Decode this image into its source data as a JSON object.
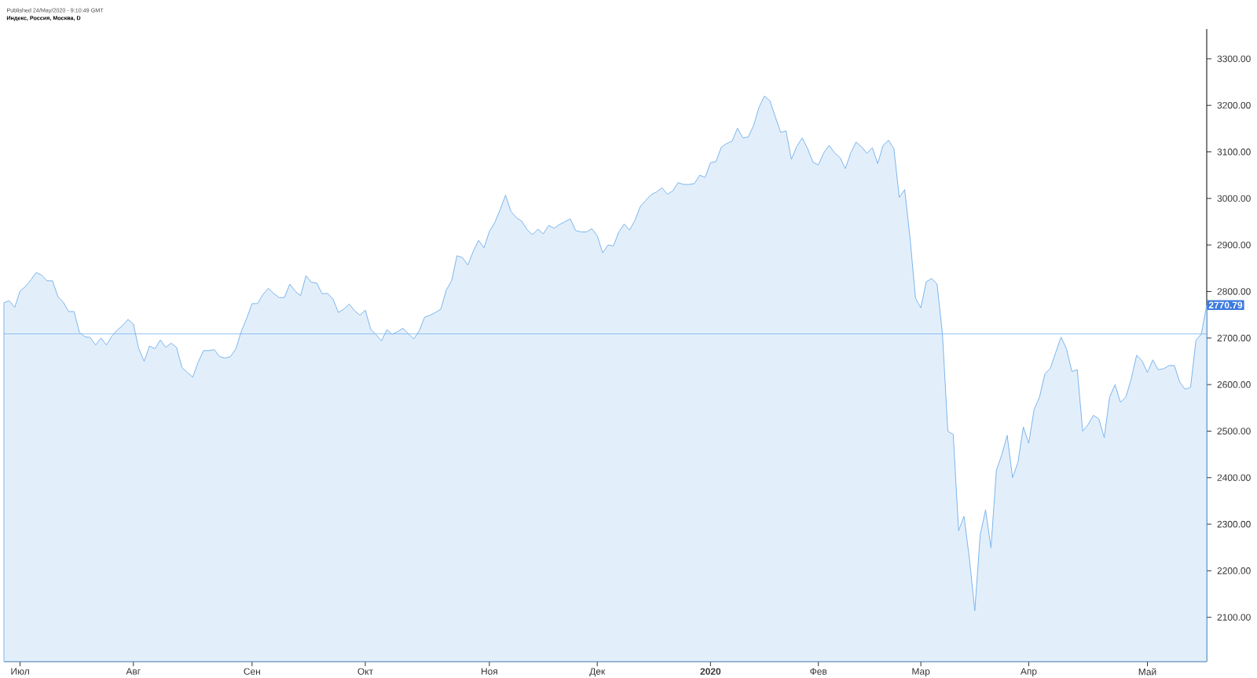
{
  "chart_data": {
    "type": "area",
    "title": "Индекс, Россия, Москва, D",
    "annotations": [
      "Published 24/May/2020 - 9:10:49 GMT",
      "2770.79"
    ],
    "categories": [
      null,
      null,
      null,
      "Июл",
      null,
      null,
      null,
      null,
      null,
      null,
      null,
      null,
      null,
      null,
      null,
      null,
      null,
      null,
      null,
      null,
      null,
      null,
      null,
      null,
      "Авг",
      null,
      null,
      null,
      null,
      null,
      null,
      null,
      null,
      null,
      null,
      null,
      null,
      null,
      null,
      null,
      null,
      null,
      null,
      null,
      null,
      null,
      "Сен",
      null,
      null,
      null,
      null,
      null,
      null,
      null,
      null,
      null,
      null,
      null,
      null,
      null,
      null,
      null,
      null,
      null,
      null,
      null,
      null,
      "Окт",
      null,
      null,
      null,
      null,
      null,
      null,
      null,
      null,
      null,
      null,
      null,
      null,
      null,
      null,
      null,
      null,
      null,
      null,
      null,
      null,
      null,
      null,
      "Ноя",
      null,
      null,
      null,
      null,
      null,
      null,
      null,
      null,
      null,
      null,
      null,
      null,
      null,
      null,
      null,
      null,
      null,
      null,
      null,
      "Дек",
      null,
      null,
      null,
      null,
      null,
      null,
      null,
      null,
      null,
      null,
      null,
      null,
      null,
      null,
      null,
      null,
      null,
      null,
      null,
      null,
      "**2020**",
      null,
      null,
      null,
      null,
      null,
      null,
      null,
      null,
      null,
      null,
      null,
      null,
      null,
      null,
      null,
      null,
      null,
      null,
      null,
      "Фев",
      null,
      null,
      null,
      null,
      null,
      null,
      null,
      null,
      null,
      null,
      null,
      null,
      null,
      null,
      null,
      null,
      null,
      null,
      "Мар",
      null,
      null,
      null,
      null,
      null,
      null,
      null,
      null,
      null,
      null,
      null,
      null,
      null,
      null,
      null,
      null,
      null,
      null,
      null,
      "Апр",
      null,
      null,
      null,
      null,
      null,
      null,
      null,
      null,
      null,
      null,
      null,
      null,
      null,
      null,
      null,
      null,
      null,
      null,
      null,
      null,
      null,
      "Май",
      null,
      null,
      null,
      null,
      null,
      null,
      null,
      null,
      null,
      null,
      null
    ],
    "ylim": [
      2005,
      3364
    ],
    "yticks": [
      {
        "value": 2100,
        "label": "2100.00"
      },
      {
        "value": 2200,
        "label": "2200.00"
      },
      {
        "value": 2300,
        "label": "2300.00"
      },
      {
        "value": 2400,
        "label": "2400.00"
      },
      {
        "value": 2500,
        "label": "2500.00"
      },
      {
        "value": 2600,
        "label": "2600.00"
      },
      {
        "value": 2700,
        "label": "2700.00"
      },
      {
        "value": 2800,
        "label": "2800.00"
      },
      {
        "value": 2900,
        "label": "2900.00"
      },
      {
        "value": 3000,
        "label": "3000.00"
      },
      {
        "value": 3100,
        "label": "3100.00"
      },
      {
        "value": 3200,
        "label": "3200.00"
      },
      {
        "value": 3300,
        "label": "3300.00"
      }
    ],
    "ref_lines": [
      {
        "axis": "y",
        "value": 2709,
        "color": "#7cb5ec"
      }
    ],
    "series": [
      {
        "color": "#7cb5ec",
        "values": [
          2776,
          2780,
          2766,
          2801,
          2811,
          2825,
          2841,
          2835,
          2823,
          2823,
          2789,
          2777,
          2757,
          2757,
          2712,
          2703,
          2701,
          2685,
          2700,
          2685,
          2704,
          2717,
          2727,
          2740,
          2730,
          2677,
          2650,
          2683,
          2677,
          2696,
          2680,
          2689,
          2680,
          2637,
          2626,
          2616,
          2648,
          2673,
          2673,
          2675,
          2660,
          2657,
          2660,
          2677,
          2714,
          2742,
          2774,
          2774,
          2793,
          2807,
          2796,
          2787,
          2787,
          2816,
          2801,
          2791,
          2834,
          2820,
          2818,
          2795,
          2796,
          2784,
          2755,
          2762,
          2773,
          2759,
          2749,
          2760,
          2719,
          2707,
          2694,
          2718,
          2708,
          2714,
          2721,
          2709,
          2698,
          2716,
          2745,
          2749,
          2755,
          2762,
          2803,
          2823,
          2877,
          2873,
          2857,
          2886,
          2910,
          2894,
          2929,
          2948,
          2976,
          3007,
          2972,
          2959,
          2951,
          2933,
          2922,
          2934,
          2924,
          2942,
          2936,
          2944,
          2950,
          2956,
          2931,
          2928,
          2928,
          2935,
          2920,
          2883,
          2900,
          2898,
          2928,
          2945,
          2932,
          2953,
          2983,
          2996,
          3008,
          3014,
          3023,
          3009,
          3016,
          3034,
          3030,
          3030,
          3032,
          3050,
          3045,
          3077,
          3079,
          3110,
          3118,
          3123,
          3151,
          3130,
          3132,
          3157,
          3196,
          3220,
          3210,
          3176,
          3142,
          3145,
          3084,
          3112,
          3130,
          3107,
          3078,
          3072,
          3098,
          3114,
          3098,
          3088,
          3064,
          3098,
          3121,
          3111,
          3097,
          3109,
          3075,
          3114,
          3125,
          3107,
          3002,
          3019,
          2914,
          2786,
          2765,
          2821,
          2828,
          2816,
          2709,
          2500,
          2493,
          2286,
          2317,
          2226,
          2114,
          2277,
          2331,
          2249,
          2416,
          2449,
          2491,
          2400,
          2433,
          2509,
          2474,
          2547,
          2573,
          2623,
          2635,
          2669,
          2702,
          2677,
          2628,
          2632,
          2500,
          2514,
          2534,
          2526,
          2486,
          2573,
          2600,
          2562,
          2573,
          2612,
          2663,
          2651,
          2626,
          2653,
          2632,
          2634,
          2641,
          2641,
          2605,
          2590,
          2594,
          2695,
          2709,
          2770.79
        ]
      }
    ]
  }
}
